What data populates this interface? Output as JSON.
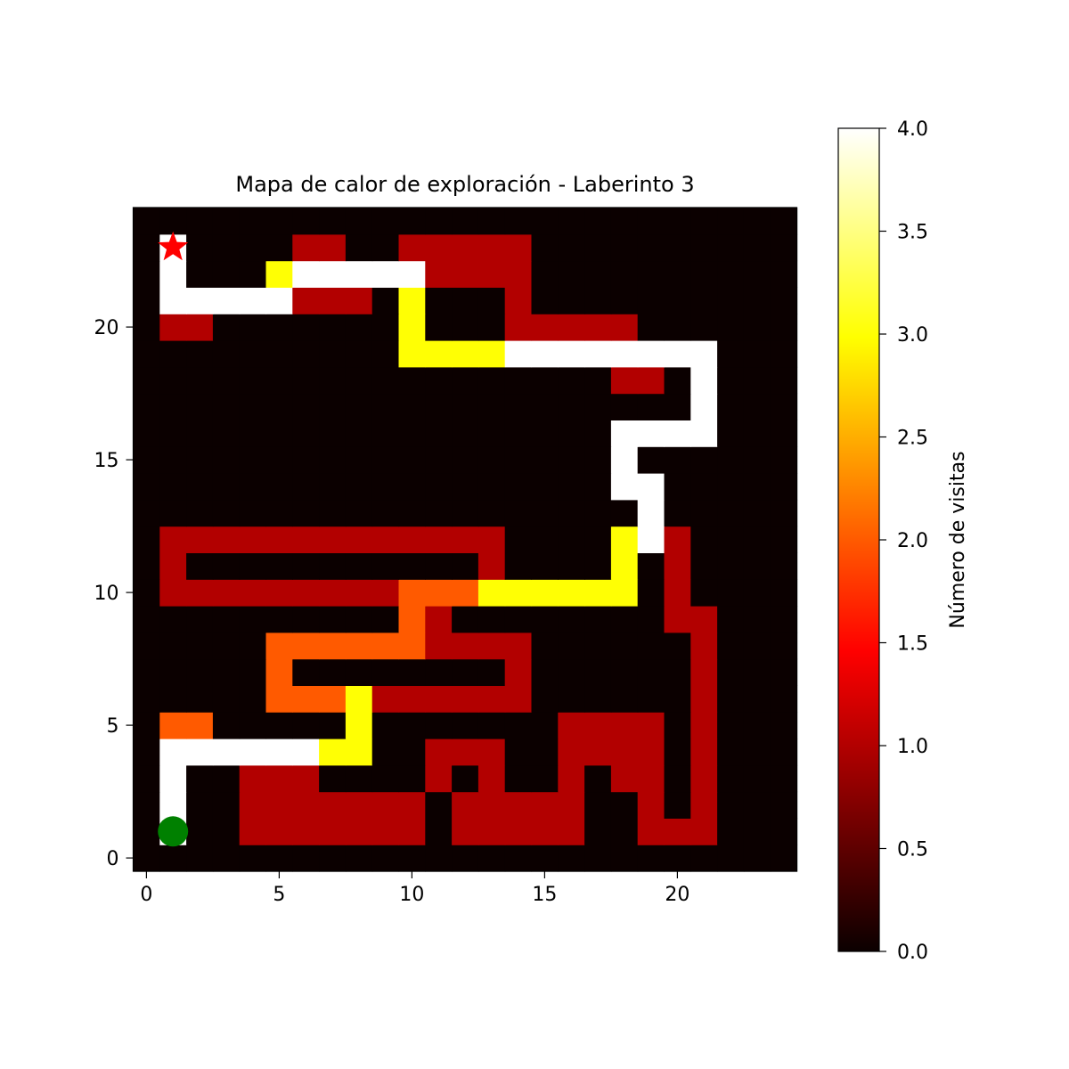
{
  "chart_data": {
    "type": "heatmap",
    "title": "Mapa de calor de exploración - Laberinto 3",
    "colormap": "hot",
    "origin": "lower",
    "grid": false,
    "xlim": [
      -0.5,
      24.5
    ],
    "ylim": [
      -0.5,
      24.5
    ],
    "xticks": [
      0,
      5,
      10,
      15,
      20
    ],
    "yticks": [
      0,
      5,
      10,
      15,
      20
    ],
    "colorbar": {
      "label": "Número de visitas",
      "vmin": 0.0,
      "vmax": 4.0,
      "ticks": [
        "0.0",
        "0.5",
        "1.0",
        "1.5",
        "2.0",
        "2.5",
        "3.0",
        "3.5",
        "4.0"
      ]
    },
    "rows_note": "grid rows listed from y=0 (bottom) to y=24 (top)",
    "grid_values": [
      [
        0,
        0,
        0,
        0,
        0,
        0,
        0,
        0,
        0,
        0,
        0,
        0,
        0,
        0,
        0,
        0,
        0,
        0,
        0,
        0,
        0,
        0,
        0,
        0,
        0
      ],
      [
        0,
        4,
        0,
        0,
        1,
        1,
        1,
        1,
        1,
        1,
        1,
        0,
        1,
        1,
        1,
        1,
        1,
        0,
        0,
        1,
        1,
        1,
        0,
        0,
        0
      ],
      [
        0,
        4,
        0,
        0,
        1,
        1,
        1,
        1,
        1,
        1,
        1,
        0,
        1,
        1,
        1,
        1,
        1,
        0,
        0,
        1,
        0,
        1,
        0,
        0,
        0
      ],
      [
        0,
        4,
        0,
        0,
        1,
        1,
        1,
        0,
        0,
        0,
        0,
        1,
        0,
        1,
        0,
        0,
        1,
        0,
        1,
        1,
        0,
        1,
        0,
        0,
        0
      ],
      [
        0,
        4,
        4,
        4,
        4,
        4,
        4,
        3,
        3,
        0,
        0,
        1,
        1,
        1,
        0,
        0,
        1,
        1,
        1,
        1,
        0,
        1,
        0,
        0,
        0
      ],
      [
        0,
        2,
        2,
        0,
        0,
        0,
        0,
        0,
        3,
        0,
        0,
        0,
        0,
        0,
        0,
        0,
        1,
        1,
        1,
        1,
        0,
        1,
        0,
        0,
        0
      ],
      [
        0,
        0,
        0,
        0,
        0,
        2,
        2,
        2,
        3,
        1,
        1,
        1,
        1,
        1,
        1,
        0,
        0,
        0,
        0,
        0,
        0,
        1,
        0,
        0,
        0
      ],
      [
        0,
        0,
        0,
        0,
        0,
        2,
        0,
        0,
        0,
        0,
        0,
        0,
        0,
        0,
        1,
        0,
        0,
        0,
        0,
        0,
        0,
        1,
        0,
        0,
        0
      ],
      [
        0,
        0,
        0,
        0,
        0,
        2,
        2,
        2,
        2,
        2,
        2,
        1,
        1,
        1,
        1,
        0,
        0,
        0,
        0,
        0,
        0,
        1,
        0,
        0,
        0
      ],
      [
        0,
        0,
        0,
        0,
        0,
        0,
        0,
        0,
        0,
        0,
        2,
        1,
        0,
        0,
        0,
        0,
        0,
        0,
        0,
        0,
        1,
        1,
        0,
        0,
        0
      ],
      [
        0,
        1,
        1,
        1,
        1,
        1,
        1,
        1,
        1,
        1,
        2,
        2,
        2,
        3,
        3,
        3,
        3,
        3,
        3,
        0,
        1,
        0,
        0,
        0,
        0
      ],
      [
        0,
        1,
        0,
        0,
        0,
        0,
        0,
        0,
        0,
        0,
        0,
        0,
        0,
        1,
        0,
        0,
        0,
        0,
        3,
        0,
        1,
        0,
        0,
        0,
        0
      ],
      [
        0,
        1,
        1,
        1,
        1,
        1,
        1,
        1,
        1,
        1,
        1,
        1,
        1,
        1,
        0,
        0,
        0,
        0,
        3,
        4,
        1,
        0,
        0,
        0,
        0
      ],
      [
        0,
        0,
        0,
        0,
        0,
        0,
        0,
        0,
        0,
        0,
        0,
        0,
        0,
        0,
        0,
        0,
        0,
        0,
        0,
        4,
        0,
        0,
        0,
        0,
        0
      ],
      [
        0,
        0,
        0,
        0,
        0,
        0,
        0,
        0,
        0,
        0,
        0,
        0,
        0,
        0,
        0,
        0,
        0,
        0,
        4,
        4,
        0,
        0,
        0,
        0,
        0
      ],
      [
        0,
        0,
        0,
        0,
        0,
        0,
        0,
        0,
        0,
        0,
        0,
        0,
        0,
        0,
        0,
        0,
        0,
        0,
        4,
        0,
        0,
        0,
        0,
        0,
        0
      ],
      [
        0,
        0,
        0,
        0,
        0,
        0,
        0,
        0,
        0,
        0,
        0,
        0,
        0,
        0,
        0,
        0,
        0,
        0,
        4,
        4,
        4,
        4,
        0,
        0,
        0
      ],
      [
        0,
        0,
        0,
        0,
        0,
        0,
        0,
        0,
        0,
        0,
        0,
        0,
        0,
        0,
        0,
        0,
        0,
        0,
        0,
        0,
        0,
        4,
        0,
        0,
        0
      ],
      [
        0,
        0,
        0,
        0,
        0,
        0,
        0,
        0,
        0,
        0,
        0,
        0,
        0,
        0,
        0,
        0,
        0,
        0,
        1,
        1,
        0,
        4,
        0,
        0,
        0
      ],
      [
        0,
        0,
        0,
        0,
        0,
        0,
        0,
        0,
        0,
        0,
        3,
        3,
        3,
        3,
        4,
        4,
        4,
        4,
        4,
        4,
        4,
        4,
        0,
        0,
        0
      ],
      [
        0,
        1,
        1,
        0,
        0,
        0,
        0,
        0,
        0,
        0,
        3,
        0,
        0,
        0,
        1,
        1,
        1,
        1,
        1,
        0,
        0,
        0,
        0,
        0,
        0
      ],
      [
        0,
        4,
        4,
        4,
        4,
        4,
        1,
        1,
        1,
        0,
        3,
        0,
        0,
        0,
        1,
        0,
        0,
        0,
        0,
        0,
        0,
        0,
        0,
        0,
        0
      ],
      [
        0,
        4,
        0,
        0,
        0,
        3,
        4,
        4,
        4,
        4,
        4,
        1,
        1,
        1,
        1,
        0,
        0,
        0,
        0,
        0,
        0,
        0,
        0,
        0,
        0
      ],
      [
        0,
        4,
        0,
        0,
        0,
        0,
        1,
        1,
        0,
        0,
        1,
        1,
        1,
        1,
        1,
        0,
        0,
        0,
        0,
        0,
        0,
        0,
        0,
        0,
        0
      ],
      [
        0,
        0,
        0,
        0,
        0,
        0,
        0,
        0,
        0,
        0,
        0,
        0,
        0,
        0,
        0,
        0,
        0,
        0,
        0,
        0,
        0,
        0,
        0,
        0,
        0
      ]
    ],
    "markers": [
      {
        "name": "start",
        "shape": "circle",
        "color": "#008000",
        "x": 1,
        "y": 1
      },
      {
        "name": "goal",
        "shape": "star",
        "color": "#ff0000",
        "x": 1,
        "y": 23
      }
    ]
  }
}
